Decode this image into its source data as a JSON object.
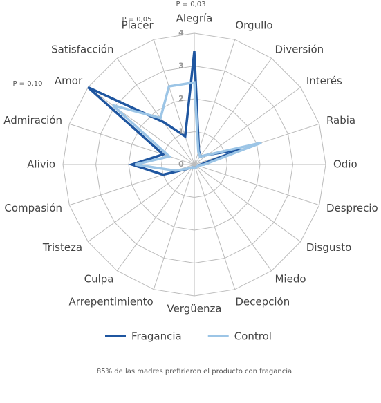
{
  "chart_data": {
    "type": "radar",
    "categories": [
      "Alegría",
      "Orgullo",
      "Diversión",
      "Interés",
      "Rabia",
      "Odio",
      "Desprecio",
      "Disgusto",
      "Miedo",
      "Decepción",
      "Vergüenza",
      "Arrepentimiento",
      "Culpa",
      "Tristeza",
      "Compasión",
      "Alivio",
      "Admiración",
      "Amor",
      "Satisfacción",
      "Placer"
    ],
    "series": [
      {
        "name": "Fragancia",
        "color": "#1f56a0",
        "values": [
          3.45,
          0.45,
          0.3,
          0.5,
          1.5,
          0.2,
          0.1,
          0.1,
          0.1,
          0.1,
          0.1,
          0.1,
          0.1,
          0.2,
          1.0,
          1.9,
          1.0,
          4.0,
          1.6,
          0.9
        ]
      },
      {
        "name": "Control",
        "color": "#9cc5e6",
        "values": [
          2.5,
          0.4,
          0.3,
          0.5,
          2.15,
          0.3,
          0.1,
          0.1,
          0.1,
          0.1,
          0.1,
          0.1,
          0.1,
          0.2,
          0.6,
          1.8,
          0.8,
          3.07,
          1.75,
          2.5
        ]
      }
    ],
    "ylim": [
      0,
      4
    ],
    "yticks": [
      0,
      1,
      2,
      3,
      4
    ],
    "annotations": [
      "P = 0,03",
      "P = 0,05",
      "P = 0,10"
    ],
    "footnote": "85% de las madres prefirieron el producto con fragancia"
  }
}
